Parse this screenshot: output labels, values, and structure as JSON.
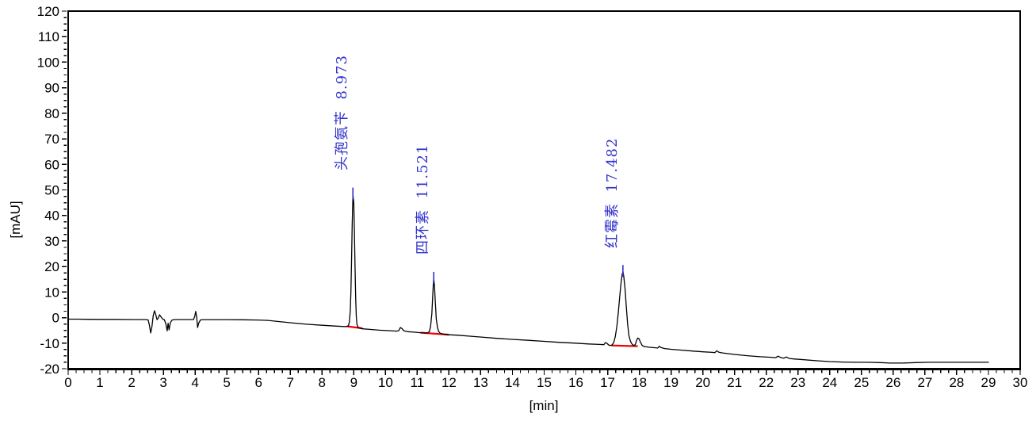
{
  "colors": {
    "trace": "#000000",
    "integration_baseline": "#ee0000",
    "peak_label": "#3333cc",
    "apex_tick": "#3333cc",
    "axis": "#000000",
    "background": "#ffffff"
  },
  "axes": {
    "x": {
      "label": "[min]",
      "min": 0,
      "max": 30,
      "major_step": 1,
      "minor_step": 0.25
    },
    "y": {
      "label": "[mAU]",
      "min": -20,
      "max": 120,
      "major_step": 10,
      "minor_step": 2.5
    }
  },
  "chart_data": {
    "type": "line",
    "title": "",
    "xlabel": "[min]",
    "ylabel": "[mAU]",
    "xlim": [
      0,
      30
    ],
    "ylim": [
      -20,
      120
    ],
    "grid": false,
    "legend": "none",
    "peaks": [
      {
        "compound": "头孢氨苄",
        "retention_time": 8.973,
        "height_mau": 48.3,
        "label": "头孢氨苄  8.973"
      },
      {
        "compound": "四环素",
        "retention_time": 11.521,
        "height_mau": 15.3,
        "label": "四环素  11.521"
      },
      {
        "compound": "红霉素",
        "retention_time": 17.482,
        "height_mau": 18.0,
        "label": "红霉素  17.482"
      }
    ],
    "integration_baselines": [
      {
        "x1": 8.78,
        "y1": -3.4,
        "x2": 9.28,
        "y2": -4.2
      },
      {
        "x1": 11.1,
        "y1": -5.9,
        "x2": 12.0,
        "y2": -6.7
      },
      {
        "x1": 17.12,
        "y1": -10.9,
        "x2": 17.95,
        "y2": -11.2
      }
    ],
    "trace": [
      [
        0,
        -0.6
      ],
      [
        0.3,
        -0.6
      ],
      [
        0.6,
        -0.65
      ],
      [
        1.0,
        -0.7
      ],
      [
        1.5,
        -0.7
      ],
      [
        2.0,
        -0.75
      ],
      [
        2.3,
        -0.75
      ],
      [
        2.45,
        -0.75
      ],
      [
        2.52,
        -0.9
      ],
      [
        2.56,
        -3.0
      ],
      [
        2.6,
        -6.0
      ],
      [
        2.64,
        -3.5
      ],
      [
        2.68,
        0.8
      ],
      [
        2.72,
        2.7
      ],
      [
        2.76,
        1.2
      ],
      [
        2.8,
        -0.8
      ],
      [
        2.84,
        -0.2
      ],
      [
        2.88,
        1.1
      ],
      [
        2.93,
        0.2
      ],
      [
        2.98,
        -0.6
      ],
      [
        3.03,
        -0.8
      ],
      [
        3.08,
        -2.5
      ],
      [
        3.12,
        -5.2
      ],
      [
        3.15,
        -2.2
      ],
      [
        3.18,
        -4.8
      ],
      [
        3.22,
        -2.0
      ],
      [
        3.27,
        -1.0
      ],
      [
        3.33,
        -0.8
      ],
      [
        3.45,
        -0.75
      ],
      [
        3.6,
        -0.75
      ],
      [
        3.8,
        -0.75
      ],
      [
        3.95,
        -0.75
      ],
      [
        3.99,
        0.5
      ],
      [
        4.02,
        2.4
      ],
      [
        4.05,
        0.3
      ],
      [
        4.08,
        -3.9
      ],
      [
        4.12,
        -2.0
      ],
      [
        4.17,
        -0.9
      ],
      [
        4.25,
        -0.8
      ],
      [
        4.5,
        -0.8
      ],
      [
        5.0,
        -0.8
      ],
      [
        5.5,
        -0.85
      ],
      [
        6.0,
        -0.95
      ],
      [
        6.3,
        -1.1
      ],
      [
        6.6,
        -1.5
      ],
      [
        7.0,
        -2.0
      ],
      [
        7.5,
        -2.6
      ],
      [
        8.0,
        -3.0
      ],
      [
        8.4,
        -3.3
      ],
      [
        8.7,
        -3.5
      ],
      [
        8.78,
        -3.5
      ],
      [
        8.83,
        -3.2
      ],
      [
        8.86,
        -1.8
      ],
      [
        8.89,
        2.5
      ],
      [
        8.91,
        10
      ],
      [
        8.93,
        22
      ],
      [
        8.95,
        36
      ],
      [
        8.97,
        46
      ],
      [
        8.973,
        48.3
      ],
      [
        9.0,
        45
      ],
      [
        9.02,
        34
      ],
      [
        9.04,
        20
      ],
      [
        9.06,
        8
      ],
      [
        9.08,
        0.5
      ],
      [
        9.1,
        -2.6
      ],
      [
        9.13,
        -3.6
      ],
      [
        9.18,
        -4.1
      ],
      [
        9.28,
        -4.4
      ],
      [
        9.5,
        -4.6
      ],
      [
        9.8,
        -4.9
      ],
      [
        10.1,
        -5.1
      ],
      [
        10.35,
        -5.3
      ],
      [
        10.42,
        -5.1
      ],
      [
        10.47,
        -3.9
      ],
      [
        10.52,
        -4.3
      ],
      [
        10.58,
        -5.2
      ],
      [
        10.7,
        -5.5
      ],
      [
        10.9,
        -5.7
      ],
      [
        11.1,
        -5.9
      ],
      [
        11.25,
        -6.0
      ],
      [
        11.33,
        -6.0
      ],
      [
        11.38,
        -5.5
      ],
      [
        11.42,
        -3.5
      ],
      [
        11.46,
        1.5
      ],
      [
        11.49,
        9
      ],
      [
        11.51,
        14
      ],
      [
        11.521,
        15.3
      ],
      [
        11.54,
        13
      ],
      [
        11.57,
        6
      ],
      [
        11.6,
        -0.5
      ],
      [
        11.64,
        -4.0
      ],
      [
        11.68,
        -5.5
      ],
      [
        11.73,
        -6.2
      ],
      [
        11.85,
        -6.5
      ],
      [
        12.0,
        -6.7
      ],
      [
        12.3,
        -6.9
      ],
      [
        12.7,
        -7.3
      ],
      [
        13.1,
        -7.7
      ],
      [
        13.5,
        -8.1
      ],
      [
        14.0,
        -8.5
      ],
      [
        14.5,
        -8.9
      ],
      [
        15.0,
        -9.3
      ],
      [
        15.5,
        -9.7
      ],
      [
        16.0,
        -10.0
      ],
      [
        16.4,
        -10.3
      ],
      [
        16.75,
        -10.5
      ],
      [
        16.88,
        -10.6
      ],
      [
        16.93,
        -9.8
      ],
      [
        16.98,
        -10.1
      ],
      [
        17.03,
        -10.7
      ],
      [
        17.08,
        -10.9
      ],
      [
        17.14,
        -10.7
      ],
      [
        17.19,
        -9.8
      ],
      [
        17.24,
        -7.5
      ],
      [
        17.29,
        -3.5
      ],
      [
        17.34,
        2.5
      ],
      [
        17.39,
        9.5
      ],
      [
        17.43,
        14.5
      ],
      [
        17.46,
        17
      ],
      [
        17.482,
        18.0
      ],
      [
        17.51,
        16
      ],
      [
        17.55,
        11
      ],
      [
        17.59,
        4
      ],
      [
        17.63,
        -2.5
      ],
      [
        17.67,
        -7
      ],
      [
        17.72,
        -9.3
      ],
      [
        17.77,
        -10.4
      ],
      [
        17.82,
        -10.9
      ],
      [
        17.87,
        -10.6
      ],
      [
        17.91,
        -9.0
      ],
      [
        17.95,
        -8.0
      ],
      [
        17.99,
        -8.3
      ],
      [
        18.04,
        -9.8
      ],
      [
        18.09,
        -10.9
      ],
      [
        18.15,
        -11.3
      ],
      [
        18.3,
        -11.6
      ],
      [
        18.5,
        -11.8
      ],
      [
        18.58,
        -11.9
      ],
      [
        18.63,
        -11.2
      ],
      [
        18.68,
        -11.7
      ],
      [
        18.8,
        -12.1
      ],
      [
        19.0,
        -12.4
      ],
      [
        19.3,
        -12.7
      ],
      [
        19.7,
        -13.1
      ],
      [
        20.0,
        -13.4
      ],
      [
        20.3,
        -13.6
      ],
      [
        20.38,
        -13.7
      ],
      [
        20.44,
        -13.0
      ],
      [
        20.5,
        -13.5
      ],
      [
        20.6,
        -13.8
      ],
      [
        21.0,
        -14.4
      ],
      [
        21.4,
        -14.9
      ],
      [
        21.8,
        -15.3
      ],
      [
        22.1,
        -15.5
      ],
      [
        22.3,
        -15.7
      ],
      [
        22.37,
        -15.1
      ],
      [
        22.45,
        -15.6
      ],
      [
        22.55,
        -15.9
      ],
      [
        22.63,
        -15.4
      ],
      [
        22.72,
        -16.0
      ],
      [
        22.9,
        -16.2
      ],
      [
        23.2,
        -16.5
      ],
      [
        23.6,
        -16.9
      ],
      [
        24.0,
        -17.2
      ],
      [
        24.4,
        -17.4
      ],
      [
        24.8,
        -17.5
      ],
      [
        25.2,
        -17.5
      ],
      [
        25.6,
        -17.6
      ],
      [
        25.9,
        -17.8
      ],
      [
        26.3,
        -17.8
      ],
      [
        26.7,
        -17.6
      ],
      [
        27.1,
        -17.5
      ],
      [
        27.6,
        -17.5
      ],
      [
        28.1,
        -17.5
      ],
      [
        28.6,
        -17.5
      ],
      [
        29.0,
        -17.5
      ]
    ]
  }
}
